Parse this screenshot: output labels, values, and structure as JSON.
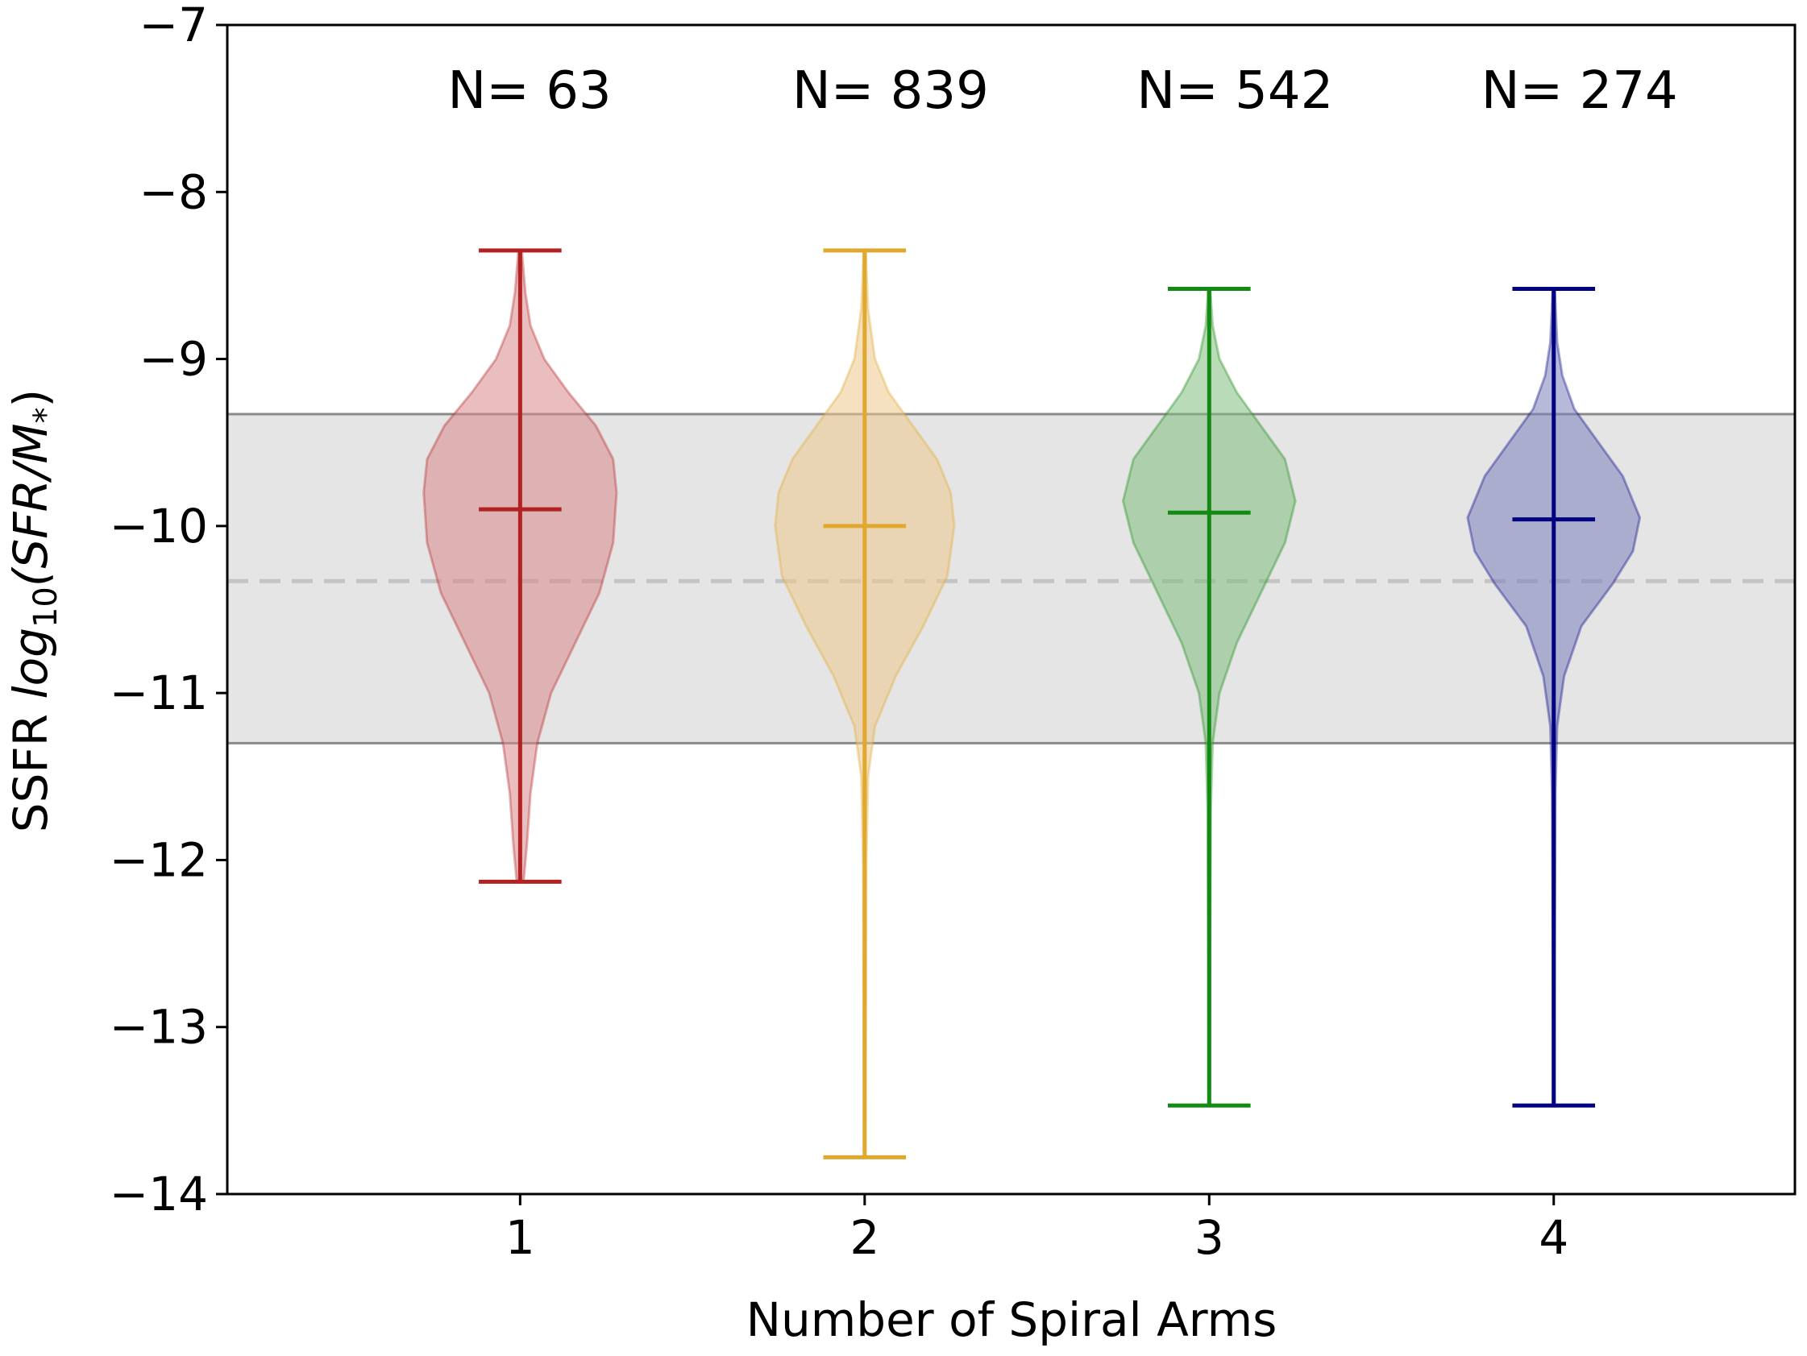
{
  "chart_data": {
    "type": "violin",
    "title": "",
    "xlabel": "Number of Spiral Arms",
    "ylabel": {
      "prefix": "SSFR ",
      "log": "log",
      "sub": "10",
      "open": "(SFR/M",
      "star": "*",
      "close": ")"
    },
    "xlim": [
      0.15,
      4.7
    ],
    "ylim": [
      -14,
      -7
    ],
    "yticks": [
      -7,
      -8,
      -9,
      -10,
      -11,
      -12,
      -13,
      -14
    ],
    "ytick_labels": [
      "−7",
      "−8",
      "−9",
      "−10",
      "−11",
      "−12",
      "−13",
      "−14"
    ],
    "xticks": [
      1,
      2,
      3,
      4
    ],
    "xtick_labels": [
      "1",
      "2",
      "3",
      "4"
    ],
    "band": {
      "low": -11.3,
      "high": -9.33,
      "line": -10.33
    },
    "series": [
      {
        "x": 1,
        "n_label": "N=  63",
        "color": "#b22222",
        "fill": "#d9878a",
        "min": -12.13,
        "max": -8.35,
        "median": -9.9,
        "profile": [
          [
            -12.13,
            0.01
          ],
          [
            -11.9,
            0.02
          ],
          [
            -11.6,
            0.03
          ],
          [
            -11.3,
            0.05
          ],
          [
            -11.0,
            0.09
          ],
          [
            -10.7,
            0.16
          ],
          [
            -10.4,
            0.23
          ],
          [
            -10.1,
            0.27
          ],
          [
            -9.8,
            0.28
          ],
          [
            -9.6,
            0.27
          ],
          [
            -9.4,
            0.22
          ],
          [
            -9.2,
            0.14
          ],
          [
            -9.0,
            0.07
          ],
          [
            -8.8,
            0.03
          ],
          [
            -8.6,
            0.015
          ],
          [
            -8.35,
            0.005
          ]
        ]
      },
      {
        "x": 2,
        "n_label": "N= 839",
        "color": "#e0a82e",
        "fill": "#ecc98a",
        "min": -13.78,
        "max": -8.35,
        "median": -10.0,
        "profile": [
          [
            -13.78,
            0.002
          ],
          [
            -13.0,
            0.003
          ],
          [
            -12.0,
            0.005
          ],
          [
            -11.5,
            0.01
          ],
          [
            -11.2,
            0.03
          ],
          [
            -10.9,
            0.09
          ],
          [
            -10.6,
            0.17
          ],
          [
            -10.3,
            0.24
          ],
          [
            -10.0,
            0.26
          ],
          [
            -9.8,
            0.25
          ],
          [
            -9.6,
            0.21
          ],
          [
            -9.4,
            0.14
          ],
          [
            -9.2,
            0.07
          ],
          [
            -9.0,
            0.03
          ],
          [
            -8.7,
            0.01
          ],
          [
            -8.35,
            0.003
          ]
        ]
      },
      {
        "x": 3,
        "n_label": "N= 542",
        "color": "#138a13",
        "fill": "#82bd7c",
        "min": -13.47,
        "max": -8.58,
        "median": -9.92,
        "profile": [
          [
            -13.47,
            0.002
          ],
          [
            -12.5,
            0.003
          ],
          [
            -11.7,
            0.005
          ],
          [
            -11.3,
            0.01
          ],
          [
            -11.0,
            0.03
          ],
          [
            -10.7,
            0.08
          ],
          [
            -10.4,
            0.15
          ],
          [
            -10.1,
            0.22
          ],
          [
            -9.85,
            0.25
          ],
          [
            -9.6,
            0.22
          ],
          [
            -9.4,
            0.15
          ],
          [
            -9.2,
            0.08
          ],
          [
            -9.0,
            0.03
          ],
          [
            -8.8,
            0.01
          ],
          [
            -8.58,
            0.003
          ]
        ]
      },
      {
        "x": 4,
        "n_label": "N= 274",
        "color": "#000080",
        "fill": "#7c7fbd",
        "min": -13.47,
        "max": -8.58,
        "median": -9.96,
        "profile": [
          [
            -13.47,
            0.002
          ],
          [
            -12.5,
            0.003
          ],
          [
            -11.6,
            0.005
          ],
          [
            -11.2,
            0.01
          ],
          [
            -10.9,
            0.03
          ],
          [
            -10.6,
            0.08
          ],
          [
            -10.35,
            0.17
          ],
          [
            -10.15,
            0.23
          ],
          [
            -9.95,
            0.25
          ],
          [
            -9.7,
            0.2
          ],
          [
            -9.5,
            0.13
          ],
          [
            -9.3,
            0.06
          ],
          [
            -9.1,
            0.025
          ],
          [
            -8.9,
            0.01
          ],
          [
            -8.58,
            0.003
          ]
        ]
      }
    ],
    "grid": false,
    "legend": "none"
  }
}
